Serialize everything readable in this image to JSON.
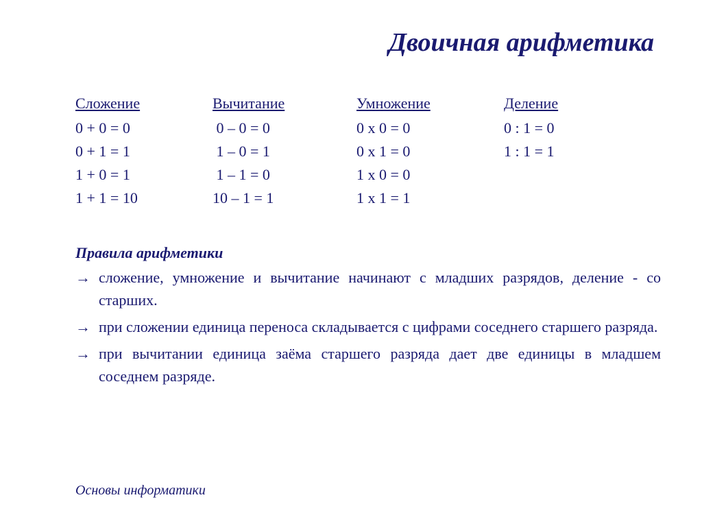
{
  "title": "Двоичная арифметика",
  "colors": {
    "text": "#1a1a70",
    "background": "#ffffff"
  },
  "typography": {
    "family": "Times New Roman",
    "title_fontsize_pt": 28,
    "body_fontsize_pt": 16
  },
  "operations": {
    "addition": {
      "header": "Сложение",
      "rows": [
        "0 + 0 = 0",
        "0 + 1 = 1",
        "1 + 0 = 1",
        "1 + 1 = 10"
      ]
    },
    "subtraction": {
      "header": "Вычитание",
      "rows": [
        " 0 – 0 = 0",
        " 1 – 0 = 1",
        " 1 – 1 = 0",
        "10 – 1 = 1"
      ]
    },
    "multiplication": {
      "header": "Умножение",
      "rows": [
        "0 х 0 = 0",
        "0 х 1 = 0",
        "1 х 0 = 0",
        "1 х 1 = 1"
      ]
    },
    "division": {
      "header": "Деление",
      "rows": [
        "0 : 1 = 0",
        "1 : 1 = 1"
      ]
    }
  },
  "rules": {
    "header": "Правила арифметики",
    "arrow": "→",
    "items": [
      "сложение, умножение и вычитание начинают с младших разрядов, деление - со старших.",
      "при сложении единица переноса складывается с цифрами соседнего старшего разряда.",
      "при вычитании единица заёма старшего разряда дает две единицы в младшем соседнем разряде."
    ]
  },
  "footer": "Основы информатики"
}
